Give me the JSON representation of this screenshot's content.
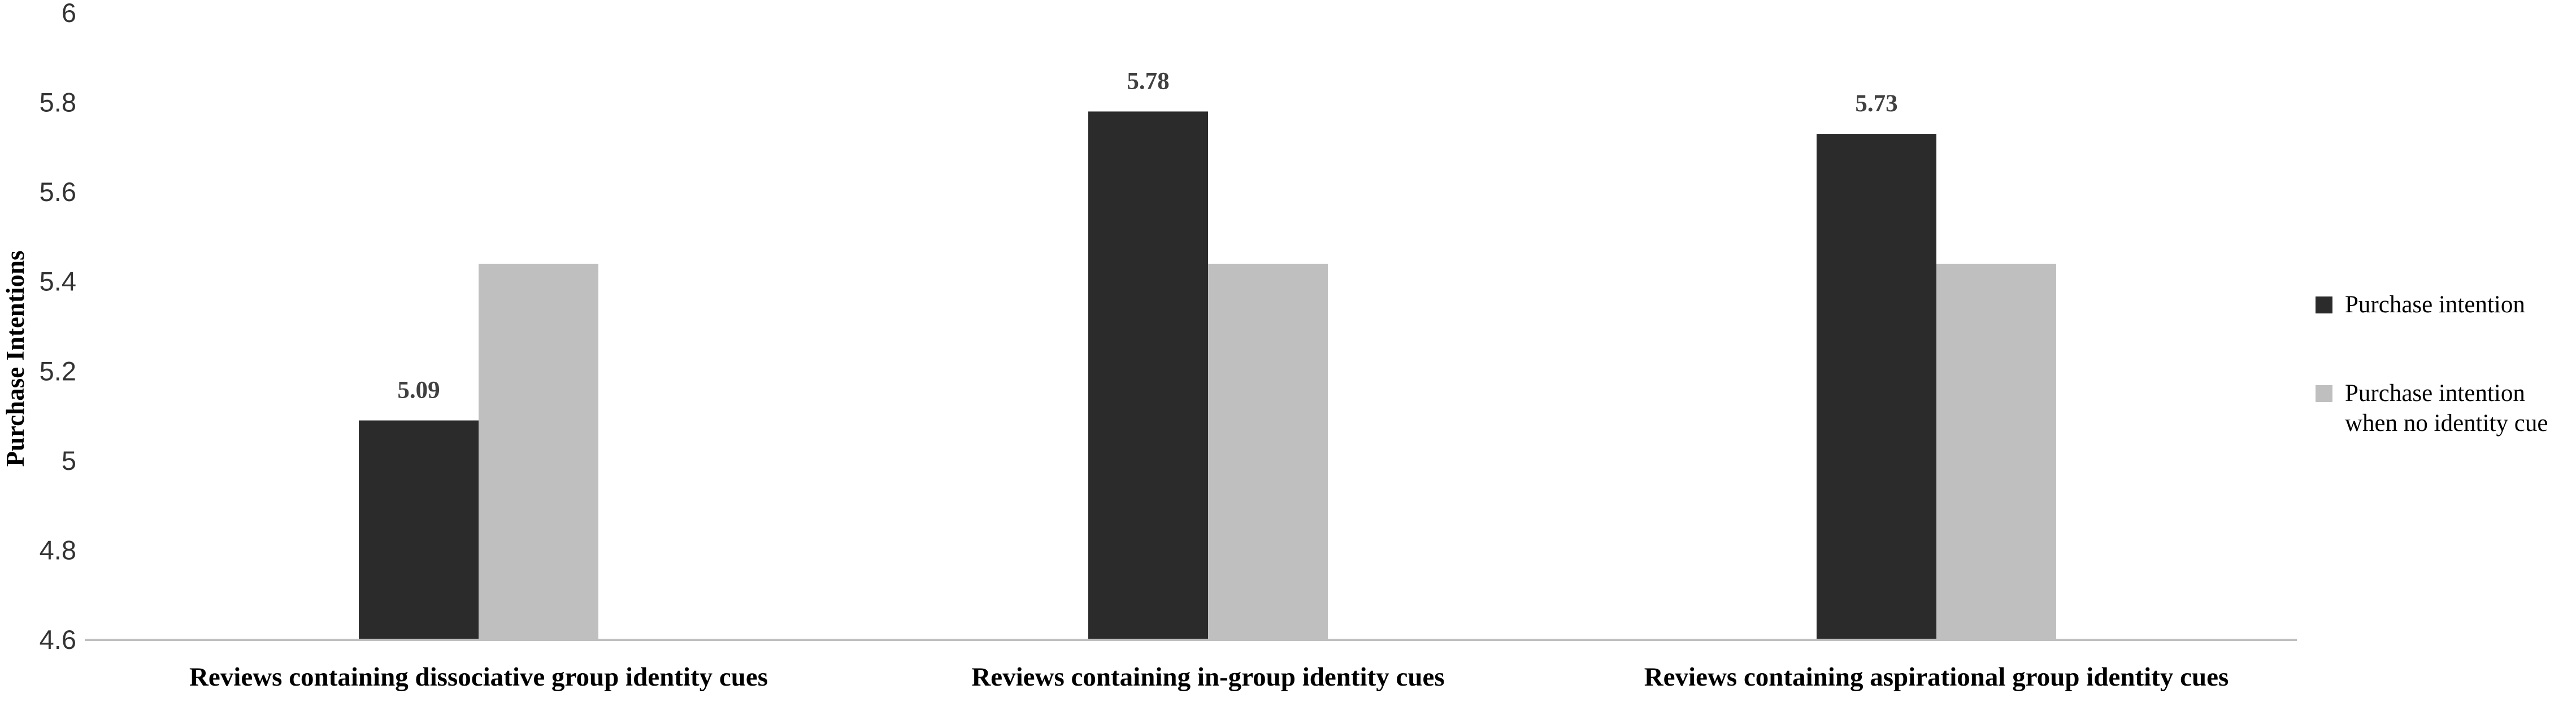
{
  "chart_data": {
    "type": "bar",
    "title": "",
    "xlabel": "",
    "ylabel": "Purchase Intentions",
    "ylim": [
      4.6,
      6
    ],
    "yticks": [
      "4.6",
      "4.8",
      "5",
      "5.2",
      "5.4",
      "5.6",
      "5.8",
      "6"
    ],
    "categories": [
      "Reviews containing dissociative group identity cues",
      "Reviews containing in-group identity cues",
      "Reviews containing aspirational group identity cues"
    ],
    "series": [
      {
        "name": "Purchase intention",
        "values": [
          5.09,
          5.78,
          5.73
        ],
        "data_labels": [
          "5.09",
          "5.78",
          "5.73"
        ],
        "color": "#2b2b2b"
      },
      {
        "name": "Purchase intention when no identity cue",
        "legend_lines": [
          "Purchase intention",
          "when no identity cue"
        ],
        "values": [
          5.44,
          5.44,
          5.44
        ],
        "color": "#bfbfbf"
      }
    ],
    "grid": false,
    "legend_position": "right",
    "axis_color": "#bfbfbf"
  }
}
